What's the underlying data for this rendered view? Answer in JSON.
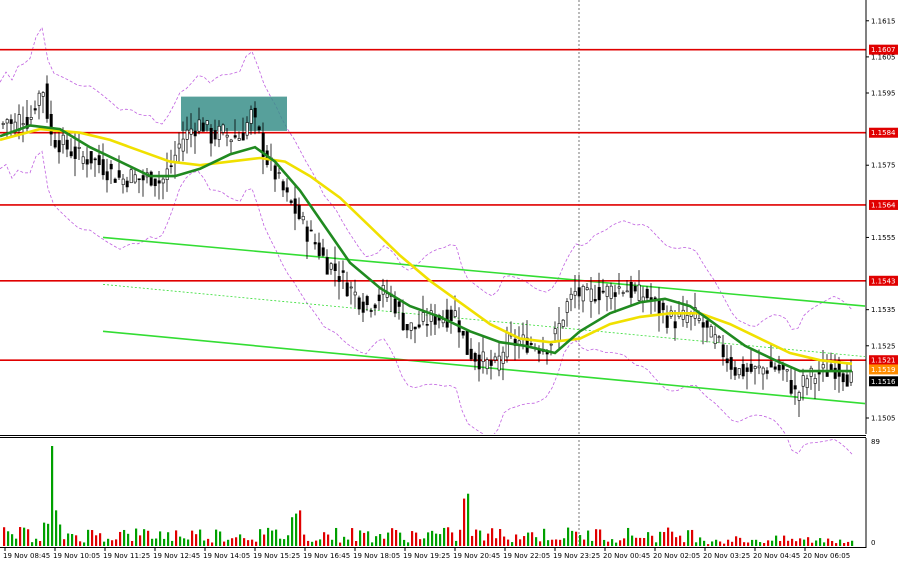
{
  "chart_data": {
    "type": "candlestick",
    "price_axis": {
      "min": 1.15,
      "max": 1.162,
      "ticks": [
        "1.1615",
        "1.1605",
        "1.1595",
        "1.1575",
        "1.1555",
        "1.1535",
        "1.1525",
        "1.1505"
      ]
    },
    "volume_axis": {
      "max_label": "89",
      "min_label": "0"
    },
    "time_labels": [
      "19 Nov 08:45",
      "19 Nov 10:05",
      "19 Nov 11:25",
      "19 Nov 12:45",
      "19 Nov 14:05",
      "19 Nov 15:25",
      "19 Nov 16:45",
      "19 Nov 18:05",
      "19 Nov 19:25",
      "19 Nov 20:45",
      "19 Nov 22:05",
      "19 Nov 23:25",
      "20 Nov 00:45",
      "20 Nov 02:05",
      "20 Nov 03:25",
      "20 Nov 04:45",
      "20 Nov 06:05"
    ],
    "levels": [
      {
        "value": 1.1607,
        "label": "1.1607",
        "color": "#e00000"
      },
      {
        "value": 1.1584,
        "label": "1.1584",
        "color": "#e00000"
      },
      {
        "value": 1.1564,
        "label": "1.1564",
        "color": "#e00000"
      },
      {
        "value": 1.1543,
        "label": "1.1543",
        "color": "#e00000"
      },
      {
        "value": 1.1521,
        "label": "1.1521",
        "color": "#e00000"
      },
      {
        "value": 1.1519,
        "label": "1.1519",
        "color": "#ff8c00"
      },
      {
        "value": 1.1516,
        "label": "1.1516",
        "color": "#000000"
      }
    ],
    "close_path": [
      [
        0,
        1.1586
      ],
      [
        6,
        1.1588
      ],
      [
        12,
        1.1585
      ],
      [
        20,
        1.1589
      ],
      [
        28,
        1.1587
      ],
      [
        36,
        1.1594
      ],
      [
        42,
        1.1596
      ],
      [
        50,
        1.1583
      ],
      [
        60,
        1.1581
      ],
      [
        70,
        1.1579
      ],
      [
        80,
        1.1577
      ],
      [
        90,
        1.1577
      ],
      [
        100,
        1.1575
      ],
      [
        110,
        1.1573
      ],
      [
        120,
        1.1571
      ],
      [
        130,
        1.1572
      ],
      [
        140,
        1.1571
      ],
      [
        150,
        1.1572
      ],
      [
        160,
        1.157
      ],
      [
        170,
        1.1575
      ],
      [
        180,
        1.1582
      ],
      [
        190,
        1.1585
      ],
      [
        200,
        1.1587
      ],
      [
        210,
        1.1583
      ],
      [
        220,
        1.1584
      ],
      [
        230,
        1.1583
      ],
      [
        240,
        1.1583
      ],
      [
        250,
        1.1589
      ],
      [
        258,
        1.1583
      ],
      [
        265,
        1.1577
      ],
      [
        275,
        1.1572
      ],
      [
        285,
        1.1566
      ],
      [
        295,
        1.1562
      ],
      [
        305,
        1.1557
      ],
      [
        315,
        1.1553
      ],
      [
        325,
        1.1548
      ],
      [
        335,
        1.1546
      ],
      [
        345,
        1.1542
      ],
      [
        355,
        1.1539
      ],
      [
        365,
        1.1536
      ],
      [
        375,
        1.1538
      ],
      [
        385,
        1.154
      ],
      [
        395,
        1.1536
      ],
      [
        405,
        1.153
      ],
      [
        415,
        1.153
      ],
      [
        425,
        1.1532
      ],
      [
        435,
        1.1533
      ],
      [
        445,
        1.1533
      ],
      [
        455,
        1.1534
      ],
      [
        465,
        1.1524
      ],
      [
        475,
        1.1522
      ],
      [
        485,
        1.152
      ],
      [
        495,
        1.1519
      ],
      [
        505,
        1.1526
      ],
      [
        515,
        1.1526
      ],
      [
        525,
        1.1526
      ],
      [
        535,
        1.1525
      ],
      [
        545,
        1.1525
      ],
      [
        555,
        1.1528
      ],
      [
        565,
        1.1536
      ],
      [
        575,
        1.154
      ],
      [
        585,
        1.1538
      ],
      [
        595,
        1.154
      ],
      [
        605,
        1.154
      ],
      [
        615,
        1.1541
      ],
      [
        625,
        1.1541
      ],
      [
        635,
        1.1539
      ],
      [
        645,
        1.1539
      ],
      [
        655,
        1.1536
      ],
      [
        665,
        1.1533
      ],
      [
        675,
        1.1532
      ],
      [
        685,
        1.1533
      ],
      [
        695,
        1.1533
      ],
      [
        705,
        1.1529
      ],
      [
        715,
        1.1526
      ],
      [
        725,
        1.1522
      ],
      [
        735,
        1.1518
      ],
      [
        745,
        1.1518
      ],
      [
        755,
        1.1518
      ],
      [
        765,
        1.1519
      ],
      [
        775,
        1.1519
      ],
      [
        785,
        1.1517
      ],
      [
        795,
        1.1511
      ],
      [
        805,
        1.1516
      ],
      [
        815,
        1.1517
      ],
      [
        825,
        1.1518
      ],
      [
        835,
        1.1519
      ],
      [
        845,
        1.1517
      ],
      [
        852,
        1.1515
      ]
    ],
    "ma_green_path": [
      [
        0,
        1.1583
      ],
      [
        30,
        1.1586
      ],
      [
        60,
        1.1585
      ],
      [
        90,
        1.158
      ],
      [
        120,
        1.1576
      ],
      [
        150,
        1.1572
      ],
      [
        175,
        1.1572
      ],
      [
        200,
        1.1574
      ],
      [
        230,
        1.1578
      ],
      [
        255,
        1.158
      ],
      [
        275,
        1.1576
      ],
      [
        300,
        1.1568
      ],
      [
        325,
        1.1558
      ],
      [
        350,
        1.1548
      ],
      [
        380,
        1.1541
      ],
      [
        410,
        1.1536
      ],
      [
        440,
        1.1533
      ],
      [
        470,
        1.1529
      ],
      [
        500,
        1.1526
      ],
      [
        525,
        1.1525
      ],
      [
        555,
        1.1523
      ],
      [
        580,
        1.1529
      ],
      [
        610,
        1.1534
      ],
      [
        640,
        1.1537
      ],
      [
        665,
        1.1538
      ],
      [
        690,
        1.1536
      ],
      [
        715,
        1.1531
      ],
      [
        745,
        1.1525
      ],
      [
        775,
        1.1521
      ],
      [
        800,
        1.1518
      ],
      [
        830,
        1.1518
      ],
      [
        852,
        1.1518
      ]
    ],
    "ma_yellow_path": [
      [
        0,
        1.1582
      ],
      [
        40,
        1.1585
      ],
      [
        80,
        1.1584
      ],
      [
        110,
        1.1582
      ],
      [
        140,
        1.1579
      ],
      [
        170,
        1.1576
      ],
      [
        200,
        1.1575
      ],
      [
        230,
        1.1576
      ],
      [
        260,
        1.1577
      ],
      [
        285,
        1.1576
      ],
      [
        310,
        1.1572
      ],
      [
        340,
        1.1566
      ],
      [
        370,
        1.1558
      ],
      [
        400,
        1.155
      ],
      [
        430,
        1.1543
      ],
      [
        460,
        1.1537
      ],
      [
        490,
        1.1531
      ],
      [
        520,
        1.1527
      ],
      [
        550,
        1.1526
      ],
      [
        580,
        1.1527
      ],
      [
        610,
        1.1531
      ],
      [
        640,
        1.1533
      ],
      [
        670,
        1.1534
      ],
      [
        700,
        1.1534
      ],
      [
        730,
        1.1531
      ],
      [
        760,
        1.1527
      ],
      [
        790,
        1.1523
      ],
      [
        820,
        1.1521
      ],
      [
        852,
        1.152
      ]
    ],
    "channel_upper": [
      [
        103,
        1.1555
      ],
      [
        865,
        1.1536
      ]
    ],
    "channel_lower": [
      [
        103,
        1.1529
      ],
      [
        865,
        1.1509
      ]
    ],
    "channel_mid": [
      [
        103,
        1.1542
      ],
      [
        865,
        1.1522
      ]
    ],
    "colors": {
      "bull": "#00a000",
      "bear": "#e00000",
      "candle": "#000000",
      "ma_green": "#208a20",
      "ma_yellow": "#f0e000",
      "channel": "#33dd33",
      "band": "#c060e0",
      "box": "#3a8f8a"
    }
  }
}
